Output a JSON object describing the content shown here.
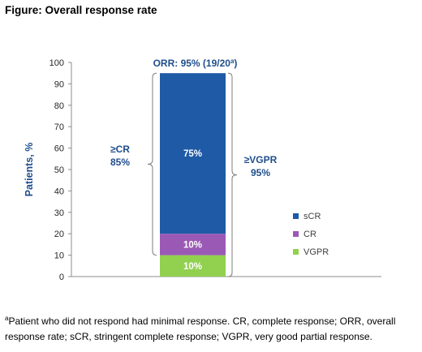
{
  "figure_title": "Figure: Overall response rate",
  "footnote": {
    "marker": "a",
    "text": "Patient who did not respond had minimal response. CR, complete response; ORR, overall response rate; sCR, stringent complete response; VGPR, very good partial response."
  },
  "chart_data": {
    "type": "bar",
    "stacked": true,
    "categories": [
      ""
    ],
    "series": [
      {
        "name": "VGPR",
        "values": [
          10
        ],
        "label": "10%",
        "color": "#92D050"
      },
      {
        "name": "CR",
        "values": [
          10
        ],
        "label": "10%",
        "color": "#9B59B6"
      },
      {
        "name": "sCR",
        "values": [
          75
        ],
        "label": "75%",
        "color": "#1F5AA6"
      }
    ],
    "ylabel": "Patients, %",
    "ylim": [
      0,
      100
    ],
    "yticks": [
      0,
      10,
      20,
      30,
      40,
      50,
      60,
      70,
      80,
      90,
      100
    ],
    "legend_position": "right",
    "annotations": {
      "orr": {
        "text": "ORR: 95% (19/20",
        "sup": "a",
        "close": ")"
      },
      "cr": {
        "line1": "≥CR",
        "line2": "85%",
        "from": 10,
        "to": 95
      },
      "vgpr": {
        "line1": "≥VGPR",
        "line2": "95%",
        "from": 0,
        "to": 95
      }
    },
    "accent_color": "#1F4E8C",
    "grid": false
  }
}
